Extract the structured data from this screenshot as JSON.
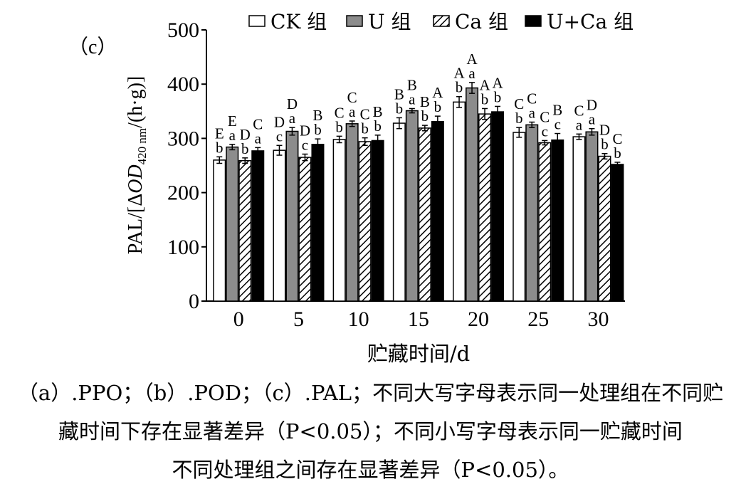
{
  "panel_label": "（c）",
  "caption": {
    "line1": "（a）.PPO；（b）.POD；（c）.PAL；不同大写字母表示同一处理组在不同贮",
    "line2": "藏时间下存在显著差异（P<0.05）；不同小写字母表示同一贮藏时间",
    "line3": "不同处理组之间存在显著差异（P<0.05）。"
  },
  "chart_data": {
    "type": "bar",
    "title": "",
    "xlabel": "贮藏时间/d",
    "ylabel": "PAL/[ΔOD420 nm/(h·g)]",
    "ylabel_parts": {
      "prefix": "PAL/[Δ",
      "italic": "OD",
      "sub": "420 nm",
      "suffix": "/(h·g)]"
    },
    "categories": [
      "0",
      "5",
      "10",
      "15",
      "20",
      "25",
      "30"
    ],
    "ylim": [
      0,
      500
    ],
    "yticks": [
      0,
      100,
      200,
      300,
      400,
      500
    ],
    "grid": false,
    "legend_position": "top",
    "series": [
      {
        "name": "CK 组",
        "pattern": "white",
        "values": [
          260,
          278,
          298,
          328,
          367,
          311,
          303
        ],
        "errors": [
          6,
          9,
          6,
          10,
          10,
          9,
          5
        ],
        "upper_letters": [
          "E",
          "D",
          "C",
          "B",
          "A",
          "C",
          "C"
        ],
        "lower_letters": [
          "b",
          "c",
          "b",
          "b",
          "b",
          "b",
          "a"
        ]
      },
      {
        "name": "U 组",
        "pattern": "gray",
        "values": [
          284,
          313,
          327,
          351,
          393,
          325,
          312
        ],
        "errors": [
          5,
          7,
          5,
          4,
          10,
          5,
          6
        ],
        "upper_letters": [
          "E",
          "D",
          "C",
          "B",
          "A",
          "C",
          "D"
        ],
        "lower_letters": [
          "a",
          "a",
          "a",
          "a",
          "a",
          "a",
          "a"
        ]
      },
      {
        "name": "Ca 组",
        "pattern": "hatched",
        "values": [
          259,
          265,
          294,
          319,
          345,
          292,
          267
        ],
        "errors": [
          5,
          6,
          7,
          5,
          10,
          4,
          5
        ],
        "upper_letters": [
          "D",
          "D",
          "C",
          "B",
          "A",
          "C",
          "D"
        ],
        "lower_letters": [
          "b",
          "c",
          "b",
          "b",
          "b",
          "c",
          "b"
        ]
      },
      {
        "name": "U+Ca 组",
        "pattern": "black",
        "values": [
          277,
          289,
          296,
          331,
          349,
          297,
          252
        ],
        "errors": [
          6,
          10,
          10,
          10,
          10,
          12,
          4
        ],
        "upper_letters": [
          "C",
          "B",
          "B",
          "A",
          "A",
          "B",
          "C"
        ],
        "lower_letters": [
          "a",
          "b",
          "b",
          "b",
          "b",
          "c",
          "b"
        ]
      }
    ]
  }
}
